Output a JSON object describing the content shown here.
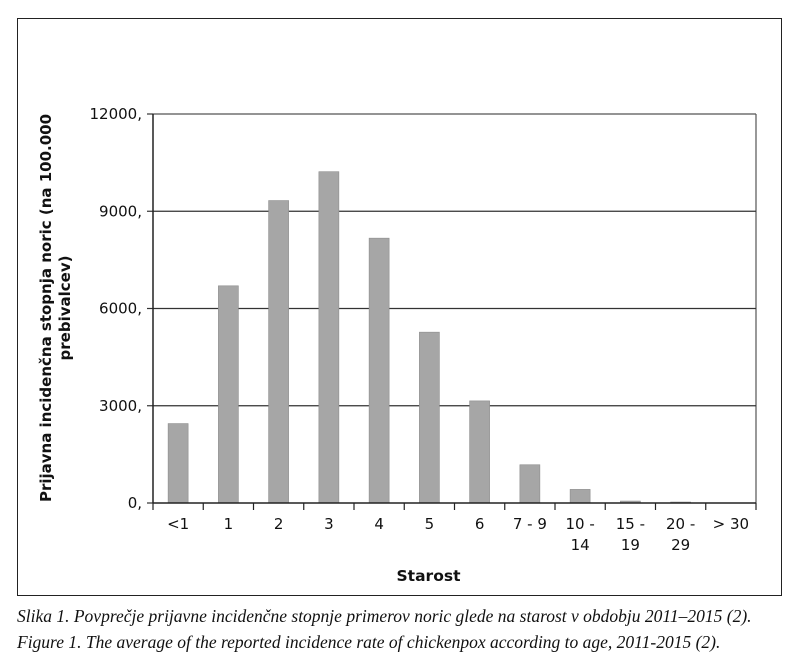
{
  "chart_data": {
    "type": "bar",
    "xlabel": "Starost",
    "ylabel_lines": [
      "Prijavna incidenčna stopnja noric (na 100.000",
      "prebivalcev)"
    ],
    "ylim": [
      0,
      12000
    ],
    "y_ticks": [
      0,
      3000,
      6000,
      9000,
      12000
    ],
    "y_tick_labels": [
      "0,",
      "3000,",
      "6000,",
      "9000,",
      "12000,"
    ],
    "grid": "horizontal",
    "bar_color": "#a6a6a6",
    "categories": [
      [
        "<1"
      ],
      [
        "1"
      ],
      [
        "2"
      ],
      [
        "3"
      ],
      [
        "4"
      ],
      [
        "5"
      ],
      [
        "6"
      ],
      [
        "7 - 9"
      ],
      [
        "10 -",
        "14"
      ],
      [
        "15 -",
        "19"
      ],
      [
        "20 -",
        "29"
      ],
      [
        "> 30"
      ]
    ],
    "values": [
      2450,
      6700,
      9330,
      10220,
      8170,
      5270,
      3150,
      1180,
      420,
      60,
      30,
      0
    ]
  },
  "captions": {
    "slovenian": "Slika 1. Povprečje prijavne incidenčne stopnje primerov noric glede na starost v obdobju 2011–2015 (2).",
    "english": "Figure 1. The average of the reported incidence rate of chickenpox according to age, 2011-2015 (2)."
  }
}
